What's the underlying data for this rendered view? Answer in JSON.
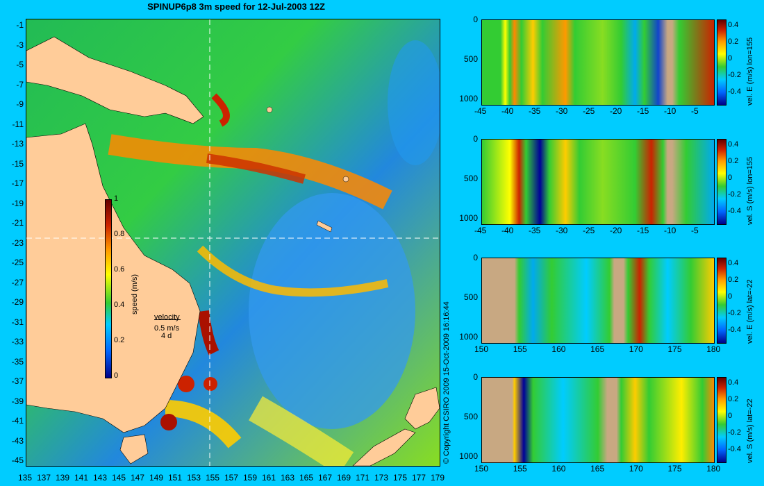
{
  "title": "SPINUP6p8 3m speed for 12-Jul-2003 12Z",
  "map": {
    "lat_ticks": [
      "-1",
      "-3",
      "-5",
      "-7",
      "-9",
      "-11",
      "-13",
      "-15",
      "-17",
      "-19",
      "-21",
      "-23",
      "-25",
      "-27",
      "-29",
      "-31",
      "-33",
      "-35",
      "-37",
      "-39",
      "-41",
      "-43",
      "-45"
    ],
    "lon_ticks": [
      "135",
      "137",
      "139",
      "141",
      "143",
      "145",
      "147",
      "149",
      "151",
      "153",
      "155",
      "157",
      "159",
      "161",
      "163",
      "165",
      "167",
      "169",
      "171",
      "173",
      "175",
      "177",
      "179"
    ],
    "colorbar": {
      "label": "speed (m/s)",
      "ticks": [
        "1",
        "0.8",
        "0.6",
        "0.4",
        "0.2",
        "0"
      ]
    },
    "velocity_legend": {
      "title": "velocity",
      "speed": "0.5 m/s",
      "time": "4 d"
    },
    "section_lines": {
      "lon": "155",
      "lat": "-22"
    }
  },
  "copyright": "© Copyright CSIRO 2009  15-Oct-2009 16:16:44",
  "colors": {
    "background": "#00ccff",
    "land": "#ffcc99",
    "section_land": "#c8a882"
  },
  "panels": [
    {
      "label": "vel. E (m/s) lon=155",
      "x_ticks": [
        "-45",
        "-40",
        "-35",
        "-30",
        "-25",
        "-20",
        "-15",
        "-10",
        "-5"
      ],
      "y_ticks": [
        "0",
        "500",
        "1000"
      ],
      "cbar_ticks": [
        "0.4",
        "0.2",
        "0",
        "-0.2",
        "-0.4"
      ]
    },
    {
      "label": "vel. S (m/s) lon=155",
      "x_ticks": [
        "-45",
        "-40",
        "-35",
        "-30",
        "-25",
        "-20",
        "-15",
        "-10",
        "-5"
      ],
      "y_ticks": [
        "0",
        "500",
        "1000"
      ],
      "cbar_ticks": [
        "0.4",
        "0.2",
        "0",
        "-0.2",
        "-0.4"
      ]
    },
    {
      "label": "vel. E (m/s) lat=-22",
      "x_ticks": [
        "150",
        "155",
        "160",
        "165",
        "170",
        "175",
        "180"
      ],
      "y_ticks": [
        "0",
        "500",
        "1000"
      ],
      "cbar_ticks": [
        "0.4",
        "0.2",
        "0",
        "-0.2",
        "-0.4"
      ]
    },
    {
      "label": "vel. S (m/s) lat=-22",
      "x_ticks": [
        "150",
        "155",
        "160",
        "165",
        "170",
        "175",
        "180"
      ],
      "y_ticks": [
        "0",
        "500",
        "1000"
      ],
      "cbar_ticks": [
        "0.4",
        "0.2",
        "0",
        "-0.2",
        "-0.4"
      ]
    }
  ]
}
